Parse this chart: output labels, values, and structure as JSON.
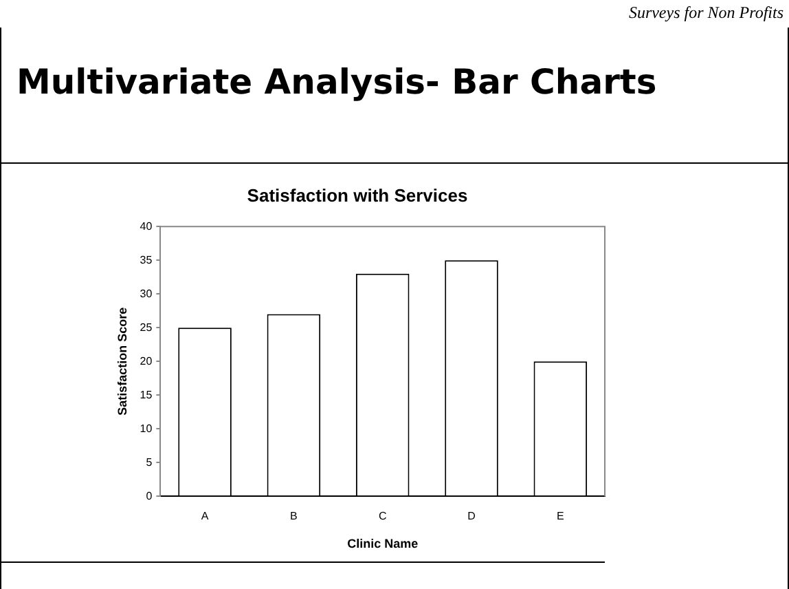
{
  "chart_data": {
    "type": "bar",
    "title": "Satisfaction with Services",
    "xlabel": "Clinic Name",
    "ylabel": "Satisfaction Score",
    "categories": [
      "A",
      "B",
      "C",
      "D",
      "E"
    ],
    "values": [
      25,
      27,
      33,
      35,
      20
    ],
    "color": "#ffffff",
    "ylim": [
      0,
      40
    ],
    "yticks": [
      0,
      5,
      10,
      15,
      20,
      25,
      30,
      35,
      40
    ],
    "grid": false,
    "legend": false,
    "annotations": [
      "Surveys for Non Profits",
      "Multivariate Analysis- Bar Charts"
    ]
  }
}
